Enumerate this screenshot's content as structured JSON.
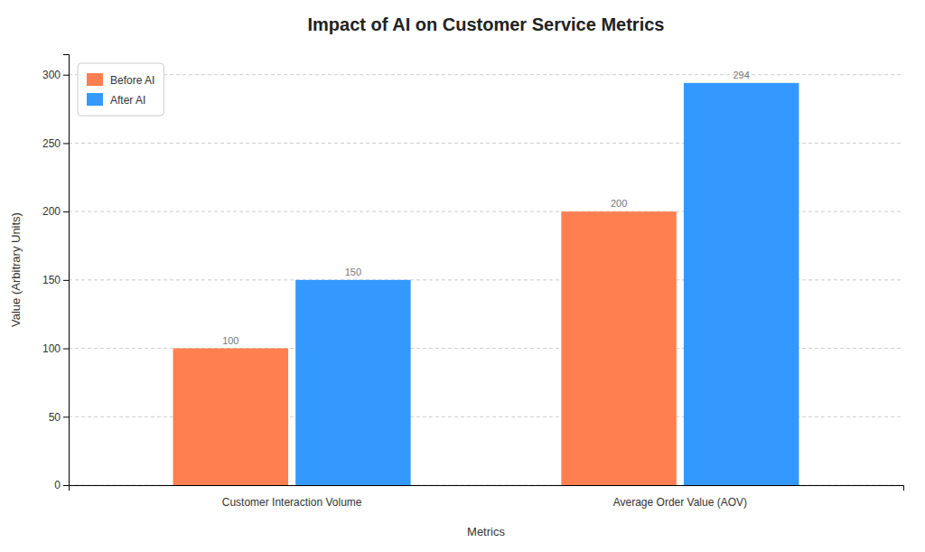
{
  "chart_data": {
    "type": "bar",
    "title": "Impact of AI on Customer Service Metrics",
    "xlabel": "Metrics",
    "ylabel": "Value (Arbitrary Units)",
    "categories": [
      "Customer Interaction Volume",
      "Average Order Value (AOV)"
    ],
    "series": [
      {
        "name": "Before AI",
        "color": "#FF7F50",
        "values": [
          100,
          200
        ]
      },
      {
        "name": "After AI",
        "color": "#3399FF",
        "values": [
          150,
          294
        ]
      }
    ],
    "ylim": [
      0,
      315
    ],
    "yticks": [
      0,
      50,
      100,
      150,
      200,
      250,
      300
    ],
    "grid": true,
    "legend": "upper left",
    "data_labels": true
  }
}
